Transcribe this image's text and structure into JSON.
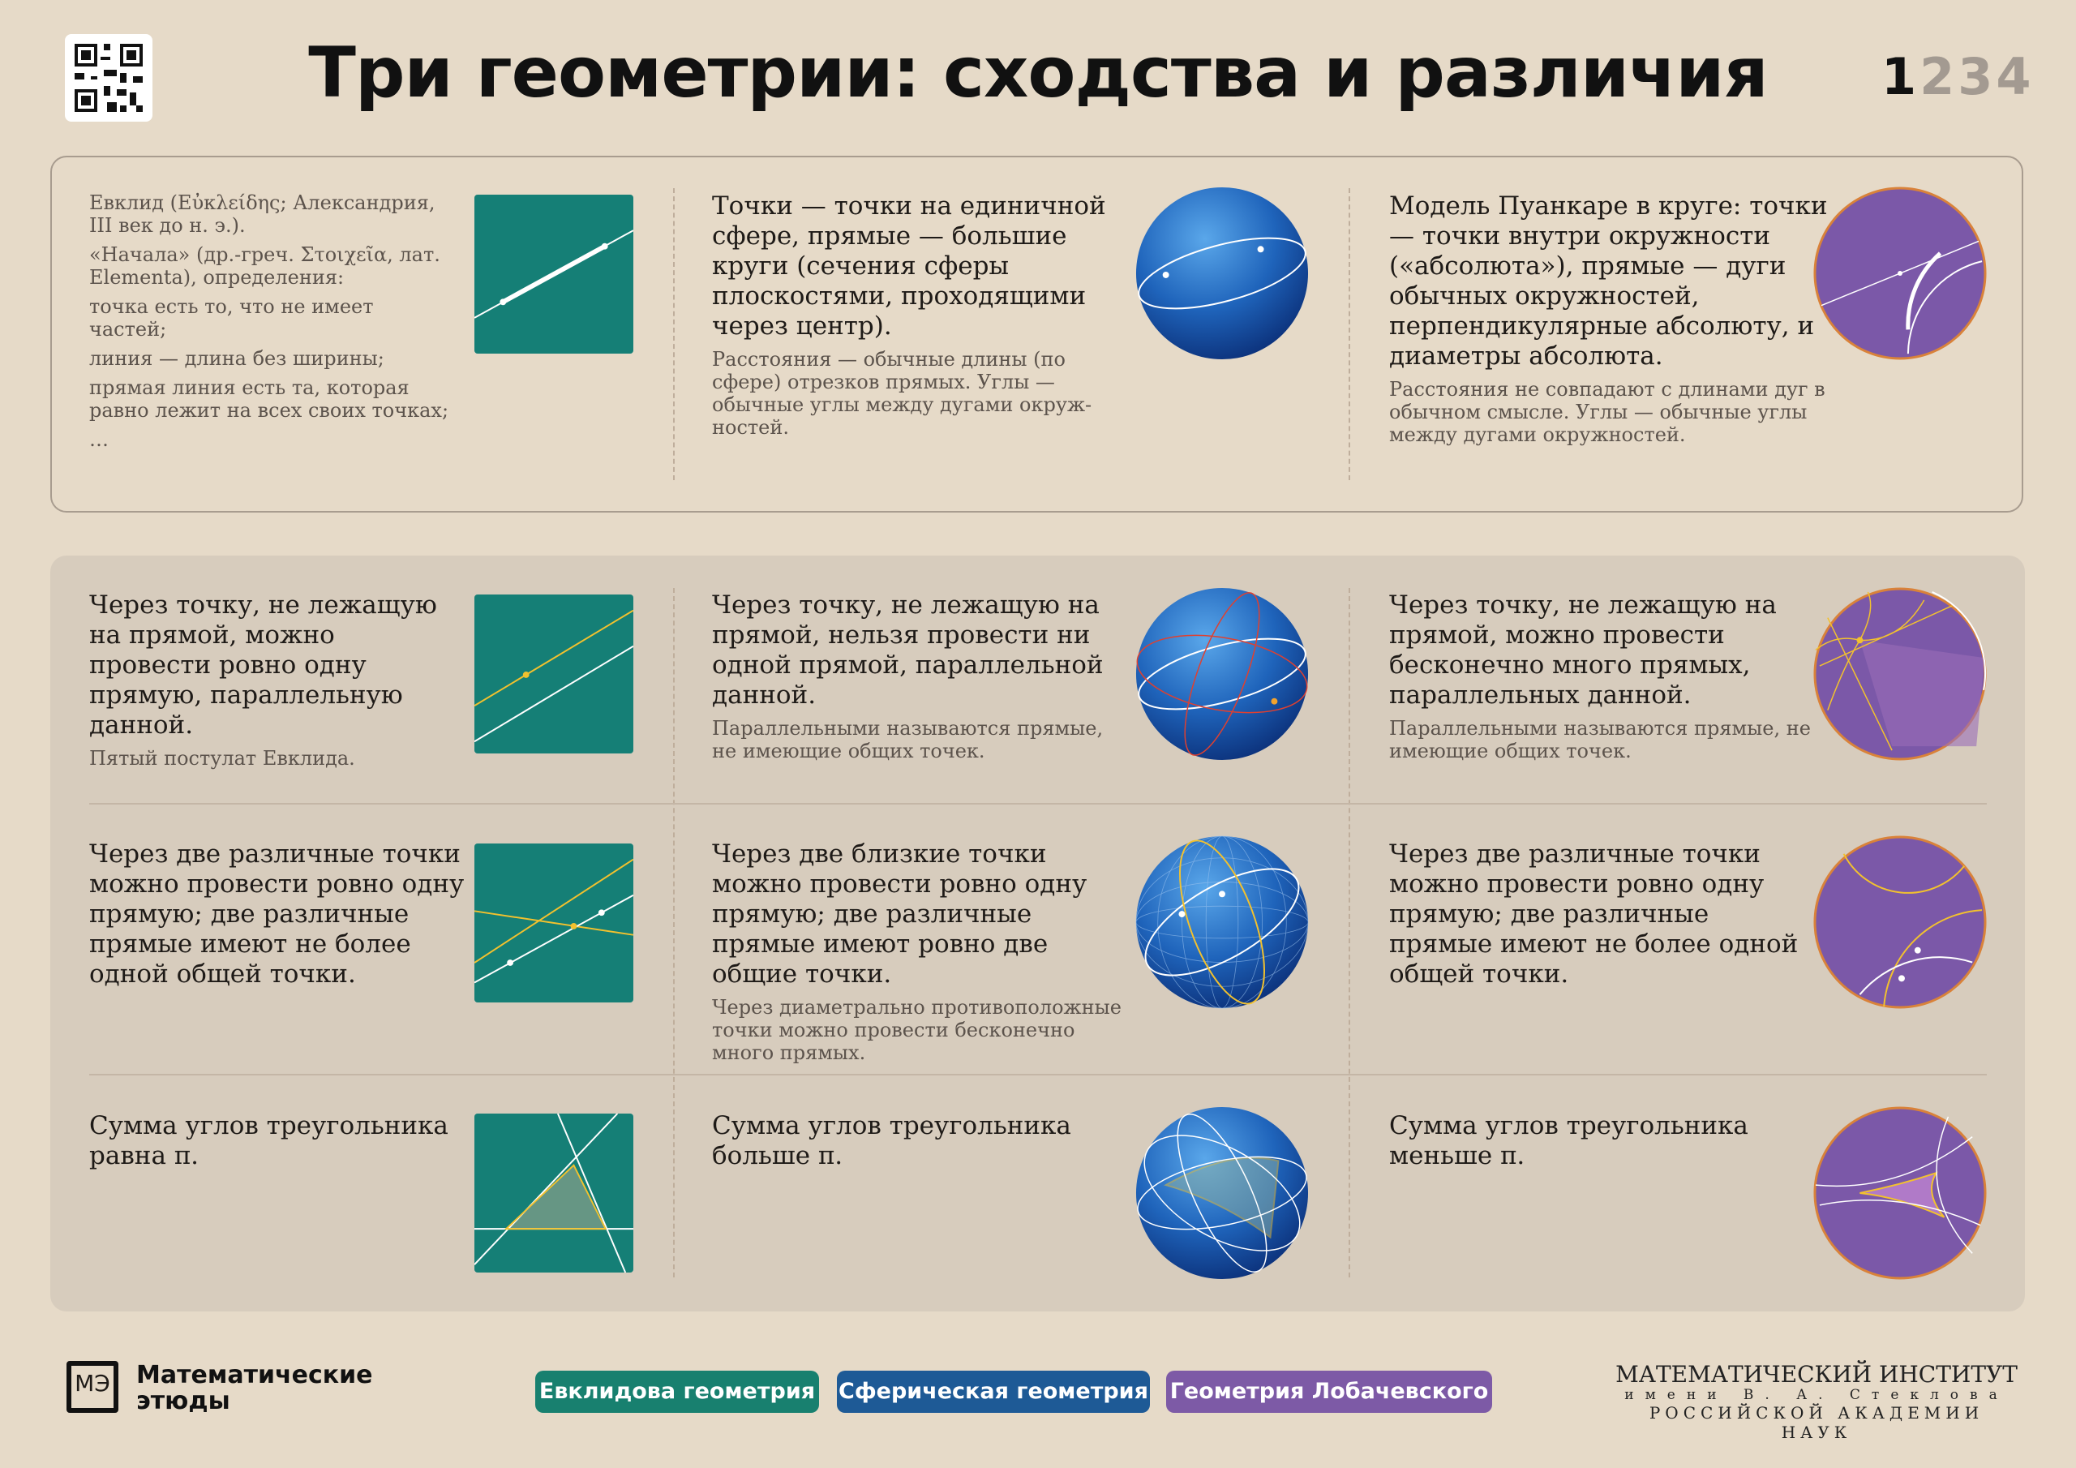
{
  "header": {
    "title": "Три геометрии: сходства и различия",
    "pages": {
      "current": "1",
      "others": "234"
    }
  },
  "colors": {
    "euclid": "#157f76",
    "spherical": "#1e5a96",
    "lobachevsky": "#7d5aa6",
    "background": "#e6dac8"
  },
  "models": {
    "euclid": {
      "notes": [
        "Евклид (Εὐκλείδης; Александрия, III век до н. э.).",
        "«Начала» (др.-греч. Στοιχεῖα, лат. Elementa), определения:",
        "точка есть то, что не имеет частей;",
        "линия — длина без ширины;",
        "прямая линия есть та, которая равно лежит на всех своих точках;",
        "…"
      ]
    },
    "spherical": {
      "main": "Точки — точки на единичной сфере, прямые — большие круги (сечения сферы плоско­стями, проходящими через центр).",
      "sub": "Расстояния — обычные длины (по сфере) отрезков прямых. Углы — обычные углы между дугами окруж­ностей."
    },
    "lobachevsky": {
      "main": "Модель Пуанкаре в круге: точки — точки внутри окружности («абсолюта»), прямые — дуги обычных окружностей, перпендику­лярные абсолюту, и диаметры абсолюта.",
      "sub": "Расстояния не совпадают с длинами дуг в обычном смысле. Углы — обычные углы между дугами окружностей."
    }
  },
  "rows": [
    {
      "euclid": {
        "main": "Через точку, не лежащую на прямой, можно провести ровно одну прямую, параллельную данной.",
        "sub": "Пятый постулат Евклида."
      },
      "spherical": {
        "main": "Через точку, не лежащую на прямой, нельзя провести ни одной прямой, параллель­ной данной.",
        "sub": "Параллельными называются прямые, не имеющие общих точек."
      },
      "lobachevsky": {
        "main": "Через точку, не лежащую на прямой, можно провести бесконечно много прямых, параллельных данной.",
        "sub": "Параллельными называются прямые, не имеющие общих точек."
      }
    },
    {
      "euclid": {
        "main": "Через две различные точки можно провести ровно одну прямую; две различные прямые имеют не более одной общей точки.",
        "sub": ""
      },
      "spherical": {
        "main": "Через две близкие точки можно провести ровно одну прямую; две различные прямые имеют ровно две общие точки.",
        "sub": "Через диаметрально противополож­ные точки можно провести бесконечно много прямых."
      },
      "lobachevsky": {
        "main": "Через две различные точки можно провести ровно одну прямую; две различные прямые имеют не более одной общей точки.",
        "sub": ""
      }
    },
    {
      "euclid": {
        "main": "Сумма углов треугольника равна π.",
        "sub": ""
      },
      "spherical": {
        "main": "Сумма углов треугольника больше π.",
        "sub": ""
      },
      "lobachevsky": {
        "main": "Сумма углов треугольника меньше π.",
        "sub": ""
      }
    }
  ],
  "footer": {
    "logo_mark": "МЭ",
    "logo_text": "Математические этюды",
    "legend": [
      "Евклидова геометрия",
      "Сферическая геометрия",
      "Геометрия Лобачевского"
    ],
    "institute": {
      "line1": "МАТЕМАТИЧЕСКИЙ ИНСТИТУТ",
      "line2": "имени В. А. Стеклова",
      "line3": "РОССИЙСКОЙ АКАДЕМИИ НАУК"
    }
  }
}
